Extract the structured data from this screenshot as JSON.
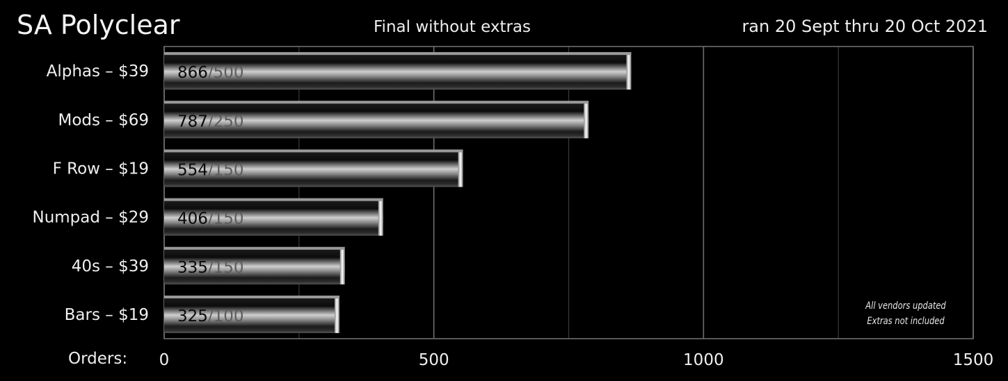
{
  "header": {
    "title": "SA Polyclear",
    "subtitle": "Final without extras",
    "date_range": "ran 20 Sept thru 20 Oct 2021"
  },
  "axis": {
    "prefix_label": "Orders:"
  },
  "note": {
    "line1": "All vendors updated",
    "line2": "Extras not included"
  },
  "colors": {
    "background": "#000000",
    "bar_light": "#d8d8d8",
    "bar_dark": "#111111",
    "grid": "#6a6a6a",
    "target_text": "#5c5c5c"
  },
  "chart_data": {
    "type": "bar",
    "orientation": "horizontal",
    "title": "SA Polyclear",
    "subtitle": "Final without extras",
    "xlabel": "Orders:",
    "ylabel": "",
    "xlim": [
      0,
      1500
    ],
    "x_ticks": [
      0,
      500,
      1000,
      1500
    ],
    "grid": true,
    "categories": [
      "Alphas – $39",
      "Mods – $69",
      "F Row – $19",
      "Numpad – $29",
      "40s – $39",
      "Bars – $19"
    ],
    "values": [
      866,
      787,
      554,
      406,
      335,
      325
    ],
    "targets": [
      500,
      250,
      150,
      150,
      150,
      100
    ]
  }
}
